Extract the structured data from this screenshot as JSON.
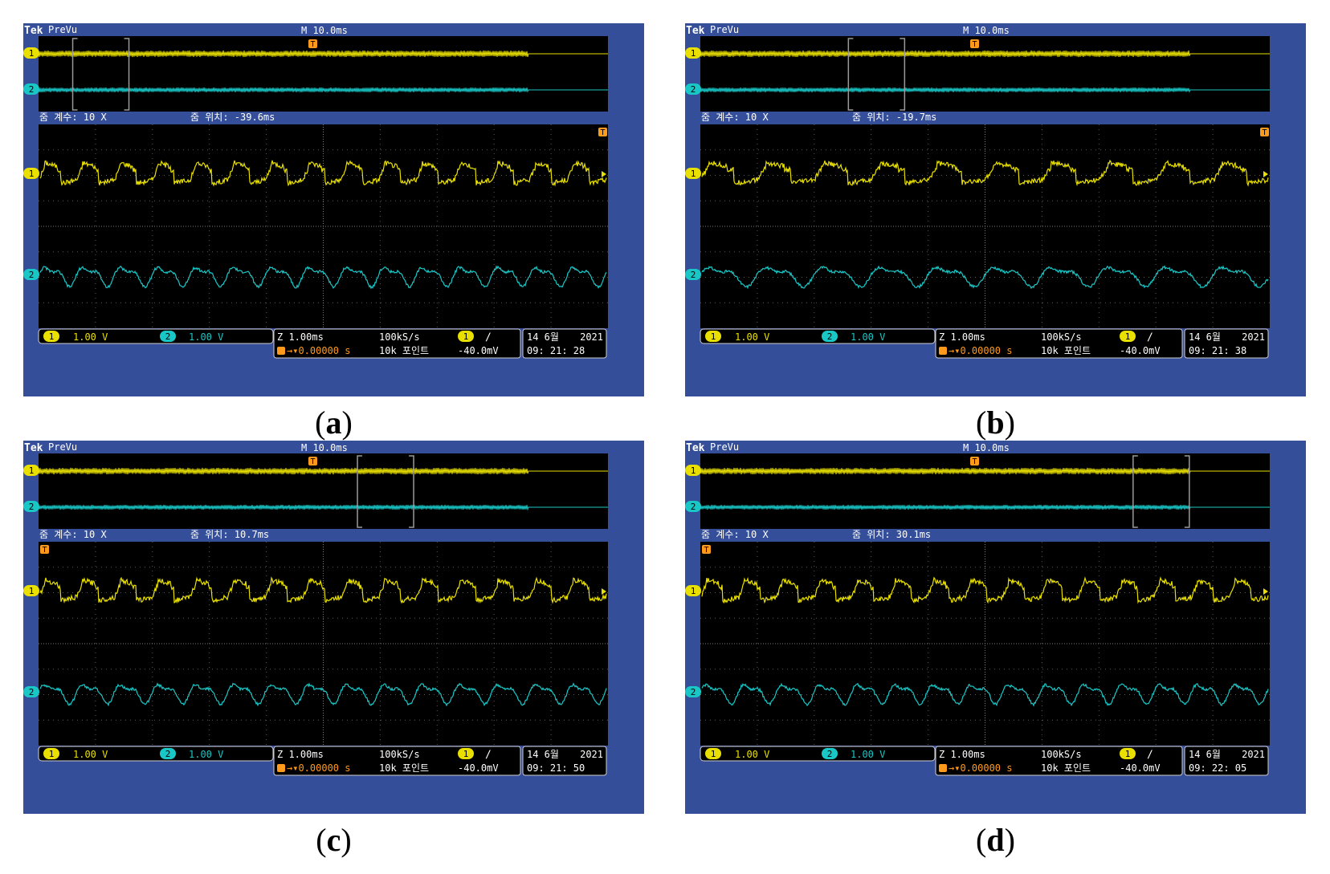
{
  "colors": {
    "bezel": "#344e9a",
    "screen": "#000000",
    "ch1": "#e9e000",
    "ch2": "#19c7c7",
    "trigger": "#ff9a1c",
    "grid": "#5a5a5a",
    "statusText": "#ffffff"
  },
  "common": {
    "brand": "Tek",
    "mode": "PreVu",
    "timebase": "M 10.0ms",
    "zoom_factor": "줌 계수: 10 X",
    "zoom_pos_label": "줌 위치:",
    "ch1_label": "1",
    "ch2_label": "2",
    "ch1_scale": "1.00 V",
    "ch2_scale": "1.00 V",
    "zoom_scale": "Z 1.00ms",
    "trig_pos": "0.00000 s",
    "sample_rate": "100kS/s",
    "record_len": "10k 포인트",
    "trig_ch": "1",
    "trig_level": "-40.0mV",
    "date": "14 6월",
    "year": "2021",
    "trigger_icon": "T"
  },
  "panels": [
    {
      "id": "a",
      "caption": "a",
      "zoom_position": "-39.6ms",
      "time": "09: 21: 28",
      "window_fraction": 0.06
    },
    {
      "id": "b",
      "caption": "b",
      "zoom_position": "-19.7ms",
      "time": "09: 21: 38",
      "window_fraction": 0.26
    },
    {
      "id": "c",
      "caption": "c",
      "zoom_position": "10.7ms",
      "time": "09: 21: 50",
      "window_fraction": 0.56
    },
    {
      "id": "d",
      "caption": "d",
      "zoom_position": "30.1ms",
      "time": "09: 22: 05",
      "window_fraction": 0.76
    }
  ]
}
